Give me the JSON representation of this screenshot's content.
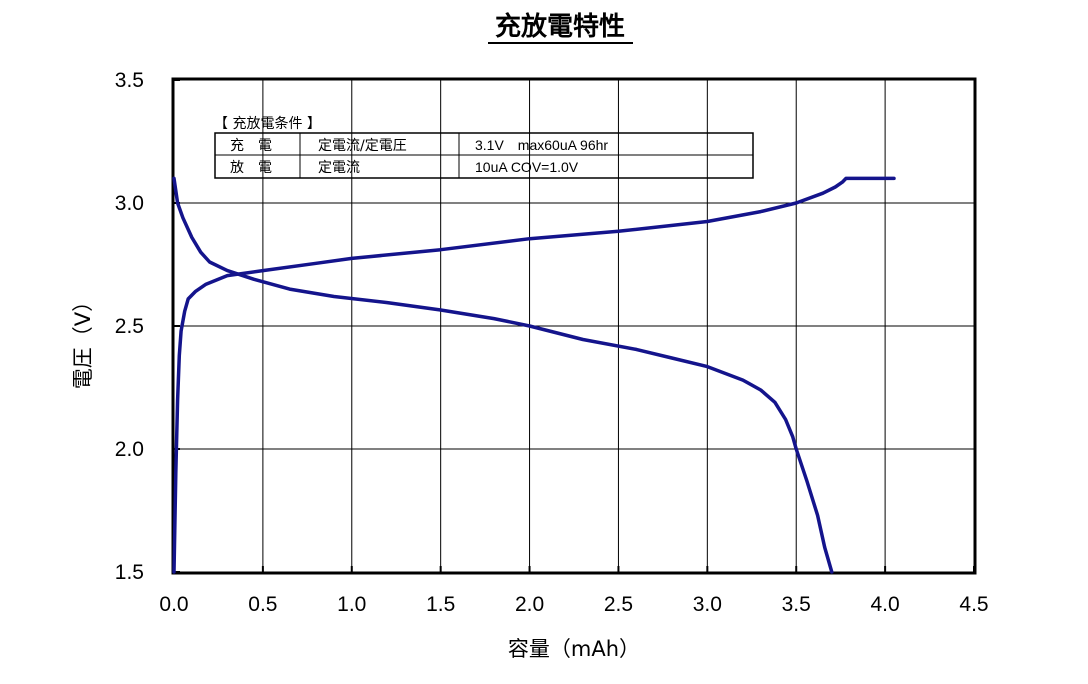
{
  "chart_data": {
    "type": "line",
    "title": "充放電特性",
    "xlabel": "容量（mAh）",
    "ylabel": "電圧（V）",
    "xlim": [
      0,
      4.5
    ],
    "ylim": [
      1.5,
      3.5
    ],
    "x_ticks": [
      "0.0",
      "0.5",
      "1.0",
      "1.5",
      "2.0",
      "2.5",
      "3.0",
      "3.5",
      "4.0",
      "4.5"
    ],
    "y_ticks": [
      "1.5",
      "2.0",
      "2.5",
      "3.0",
      "3.5"
    ],
    "grid": true,
    "line_color": "#14148c",
    "series": [
      {
        "x": [
          0.0,
          0.01,
          0.02,
          0.03,
          0.04,
          0.06,
          0.08,
          0.12,
          0.18,
          0.3,
          0.5,
          0.8,
          1.0,
          1.5,
          2.0,
          2.5,
          3.0,
          3.3,
          3.5,
          3.65,
          3.72,
          3.76,
          3.78,
          3.85,
          4.05
        ],
        "y": [
          1.5,
          1.9,
          2.2,
          2.38,
          2.48,
          2.56,
          2.61,
          2.64,
          2.67,
          2.705,
          2.725,
          2.755,
          2.775,
          2.81,
          2.855,
          2.885,
          2.925,
          2.965,
          3.0,
          3.04,
          3.065,
          3.085,
          3.1,
          3.1,
          3.1
        ]
      },
      {
        "x": [
          0.0,
          0.02,
          0.05,
          0.1,
          0.15,
          0.2,
          0.3,
          0.45,
          0.65,
          0.9,
          1.2,
          1.5,
          1.8,
          2.0,
          2.3,
          2.6,
          2.8,
          3.0,
          3.2,
          3.3,
          3.38,
          3.44,
          3.48,
          3.5,
          3.56,
          3.62,
          3.66,
          3.7
        ],
        "y": [
          3.1,
          3.0,
          2.94,
          2.86,
          2.8,
          2.76,
          2.725,
          2.69,
          2.65,
          2.62,
          2.595,
          2.565,
          2.53,
          2.5,
          2.445,
          2.405,
          2.37,
          2.335,
          2.28,
          2.24,
          2.19,
          2.12,
          2.05,
          2.0,
          1.87,
          1.73,
          1.6,
          1.5
        ]
      }
    ],
    "conditions": {
      "title": "【 充放電条件 】",
      "rows": [
        {
          "label": "充　電",
          "method": "定電流/定電圧",
          "detail": "3.1V　max60uA 96hr"
        },
        {
          "label": "放　電",
          "method": "定電流",
          "detail": "10uA COV=1.0V"
        }
      ]
    }
  }
}
